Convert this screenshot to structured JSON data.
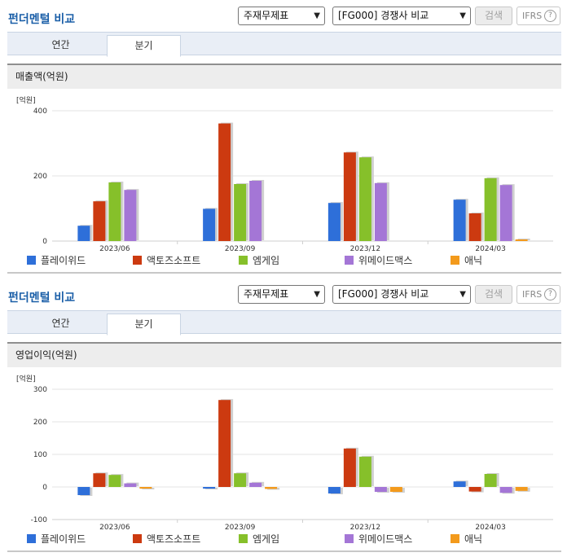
{
  "colors": {
    "title": "#1b5fa8",
    "series": [
      "#2e6fd9",
      "#cc3a10",
      "#86c02a",
      "#a476d6",
      "#f39a1c"
    ]
  },
  "panels": [
    {
      "title": "펀더멘털 비교",
      "select_statement": "주재무제표",
      "select_compare": "[FG000] 경쟁사 비교",
      "search_label": "검색",
      "ifrs_label": "IFRS",
      "help_label": "?",
      "tabs": [
        "연간",
        "분기"
      ],
      "active_tab": "분기",
      "section_title": "매출액(억원)",
      "unit_label": "[억원]",
      "legend": [
        "플레이위드",
        "액토즈소프트",
        "엠게임",
        "위메이드맥스",
        "애닉"
      ]
    },
    {
      "title": "펀더멘털 비교",
      "select_statement": "주재무제표",
      "select_compare": "[FG000] 경쟁사 비교",
      "search_label": "검색",
      "ifrs_label": "IFRS",
      "help_label": "?",
      "tabs": [
        "연간",
        "분기"
      ],
      "active_tab": "분기",
      "section_title": "영업이익(억원)",
      "unit_label": "[억원]",
      "legend": [
        "플레이위드",
        "액토즈소프트",
        "엠게임",
        "위메이드맥스",
        "애닉"
      ]
    }
  ],
  "chart_data": [
    {
      "type": "bar",
      "title": "매출액(억원)",
      "ylabel": "[억원]",
      "categories": [
        "2023/06",
        "2023/09",
        "2023/12",
        "2024/03"
      ],
      "yticks": [
        0,
        200,
        400
      ],
      "ylim": [
        0,
        400
      ],
      "grid": true,
      "legend_position": "bottom",
      "series": [
        {
          "name": "플레이위드",
          "values": [
            47,
            99,
            117,
            127
          ]
        },
        {
          "name": "액토즈소프트",
          "values": [
            122,
            361,
            272,
            85
          ]
        },
        {
          "name": "엠게임",
          "values": [
            180,
            175,
            257,
            193
          ]
        },
        {
          "name": "위메이드맥스",
          "values": [
            157,
            185,
            178,
            172
          ]
        },
        {
          "name": "애닉",
          "values": [
            0,
            0,
            0,
            5
          ]
        }
      ]
    },
    {
      "type": "bar",
      "title": "영업이익(억원)",
      "ylabel": "[억원]",
      "categories": [
        "2023/06",
        "2023/09",
        "2023/12",
        "2024/03"
      ],
      "yticks": [
        -100,
        0,
        100,
        200,
        300
      ],
      "ylim": [
        -100,
        300
      ],
      "grid": true,
      "legend_position": "bottom",
      "series": [
        {
          "name": "플레이위드",
          "values": [
            -25,
            -5,
            -20,
            17
          ]
        },
        {
          "name": "액토즈소프트",
          "values": [
            42,
            267,
            118,
            -14
          ]
        },
        {
          "name": "엠게임",
          "values": [
            37,
            42,
            93,
            40
          ]
        },
        {
          "name": "위메이드맥스",
          "values": [
            11,
            13,
            -15,
            -18
          ]
        },
        {
          "name": "애닉",
          "values": [
            -5,
            -6,
            -15,
            -12
          ]
        }
      ]
    }
  ]
}
